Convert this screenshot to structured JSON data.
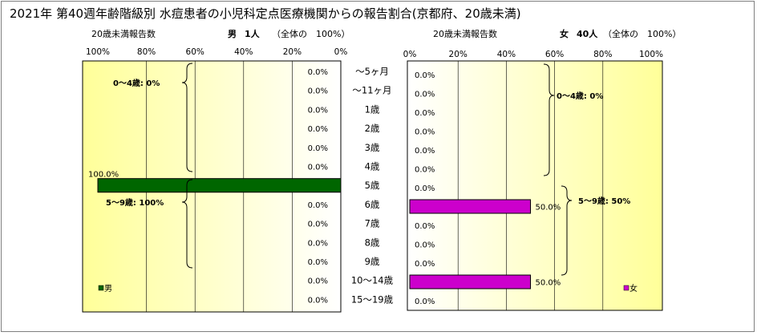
{
  "chart_data": {
    "type": "bar",
    "title": "2021年 第40週年齢階級別 水痘患者の小児科定点医療機関からの報告割合(京都府、20歳未満)",
    "categories": [
      "～5ヶ月",
      "～11ヶ月",
      "1歳",
      "2歳",
      "3歳",
      "4歳",
      "5歳",
      "6歳",
      "7歳",
      "8歳",
      "9歳",
      "10～14歳",
      "15～19歳"
    ],
    "xlim": [
      0,
      100
    ],
    "ticks": [
      "0%",
      "20%",
      "40%",
      "60%",
      "80%",
      "100%"
    ],
    "male": {
      "axis_label": "20歳未満報告数",
      "header": "男",
      "count": "1人",
      "total_note": "（全体の　100%）",
      "legend": "男",
      "color": "#006600",
      "values": [
        0,
        0,
        0,
        0,
        0,
        0,
        100,
        0,
        0,
        0,
        0,
        0,
        0
      ],
      "labels": [
        "0.0%",
        "0.0%",
        "0.0%",
        "0.0%",
        "0.0%",
        "0.0%",
        "100.0%",
        "0.0%",
        "0.0%",
        "0.0%",
        "0.0%",
        "0.0%",
        "0.0%"
      ],
      "brackets": [
        "0～4歳: 0%",
        "5～9歳: 100%"
      ]
    },
    "female": {
      "axis_label": "20歳未満報告数",
      "header": "女",
      "count": "40人",
      "total_note": "（全体の　100%）",
      "legend": "女",
      "color": "#cc00cc",
      "values": [
        0,
        0,
        0,
        0,
        0,
        0,
        0,
        50,
        0,
        0,
        0,
        50,
        0
      ],
      "labels": [
        "0.0%",
        "0.0%",
        "0.0%",
        "0.0%",
        "0.0%",
        "0.0%",
        "0.0%",
        "50.0%",
        "0.0%",
        "0.0%",
        "0.0%",
        "50.0%",
        "0.0%"
      ],
      "brackets": [
        "0～4歳: 0%",
        "5～9歳: 50%"
      ]
    }
  }
}
